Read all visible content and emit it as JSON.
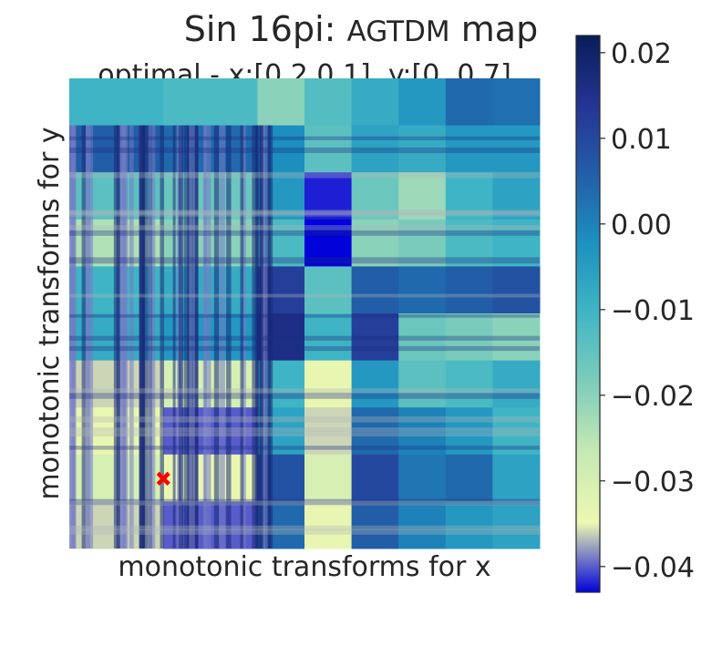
{
  "chart_data": {
    "type": "heatmap",
    "title_prefix": "Sin 16pi: ",
    "title_method": "AGTDM",
    "title_suffix": " map",
    "subtitle": "optimal - x:[0.2 0.1], y:[0.  0.7]",
    "xlabel": "monotonic transforms for x",
    "ylabel": "monotonic transforms for y",
    "colormap": "YlGnBu",
    "vmin": -0.043,
    "vmax": 0.022,
    "colorbar_ticks": [
      0.02,
      0.01,
      0.0,
      -0.01,
      -0.02,
      -0.03,
      -0.04
    ],
    "colorbar_tick_labels": [
      "0.02",
      "0.01",
      "0.00",
      "−0.01",
      "−0.02",
      "−0.03",
      "−0.04"
    ],
    "x_block_edges": [
      0.0,
      0.2,
      0.4,
      0.5,
      0.6,
      0.7,
      0.8,
      0.9,
      1.0
    ],
    "y_block_edges": [
      0.0,
      0.1,
      0.2,
      0.3,
      0.4,
      0.5,
      0.6,
      0.7,
      0.8,
      0.9,
      1.0
    ],
    "block_values": [
      [
        -0.01,
        -0.012,
        -0.02,
        -0.013,
        -0.008,
        -0.004,
        0.004,
        0.003
      ],
      [
        0.006,
        0.004,
        -0.002,
        -0.014,
        -0.006,
        -0.008,
        -0.004,
        -0.004
      ],
      [
        -0.014,
        -0.016,
        -0.004,
        -0.042,
        -0.016,
        -0.022,
        -0.01,
        -0.006
      ],
      [
        -0.024,
        -0.02,
        -0.012,
        -0.043,
        -0.02,
        -0.018,
        -0.012,
        -0.01
      ],
      [
        -0.01,
        -0.008,
        0.012,
        -0.014,
        0.006,
        0.004,
        0.006,
        0.008
      ],
      [
        -0.008,
        -0.004,
        0.016,
        -0.01,
        0.012,
        -0.016,
        -0.018,
        -0.02
      ],
      [
        -0.036,
        -0.03,
        -0.01,
        -0.034,
        -0.004,
        -0.014,
        -0.012,
        -0.008
      ],
      [
        -0.034,
        -0.04,
        -0.006,
        -0.036,
        0.004,
        0.0,
        -0.004,
        -0.01
      ],
      [
        -0.03,
        -0.034,
        0.008,
        -0.03,
        0.01,
        0.002,
        0.004,
        -0.006
      ],
      [
        -0.036,
        -0.04,
        0.004,
        -0.034,
        0.006,
        0.0,
        -0.004,
        -0.006
      ]
    ],
    "optimal_marker": {
      "x": 0.2,
      "y": 0.1,
      "color": "#ff0000",
      "symbol": "x"
    }
  }
}
